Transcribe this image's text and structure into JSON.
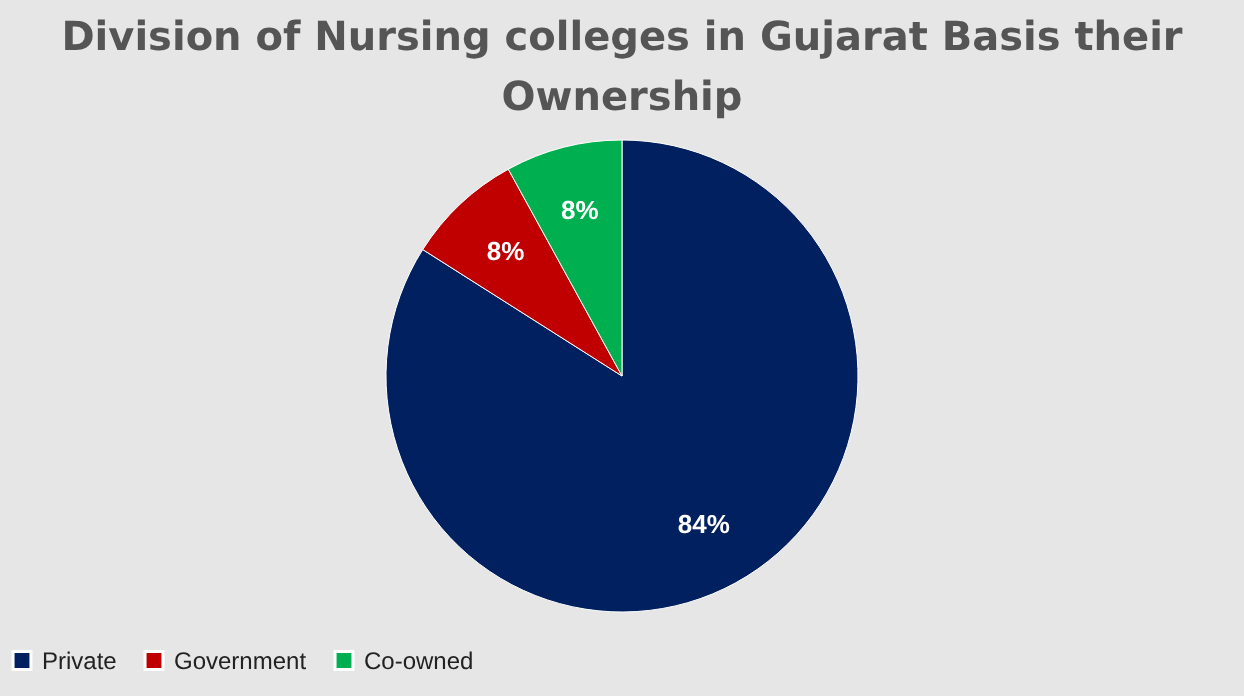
{
  "chart_data": {
    "type": "pie",
    "title": "Division of Nursing colleges in Gujarat Basis their Ownership",
    "categories": [
      "Private",
      "Government",
      "Co-owned"
    ],
    "values": [
      84,
      8,
      8
    ],
    "colors": [
      "#002060",
      "#c00000",
      "#00b050"
    ],
    "value_labels": [
      "84%",
      "8%",
      "8%"
    ],
    "legend": "bottom"
  }
}
